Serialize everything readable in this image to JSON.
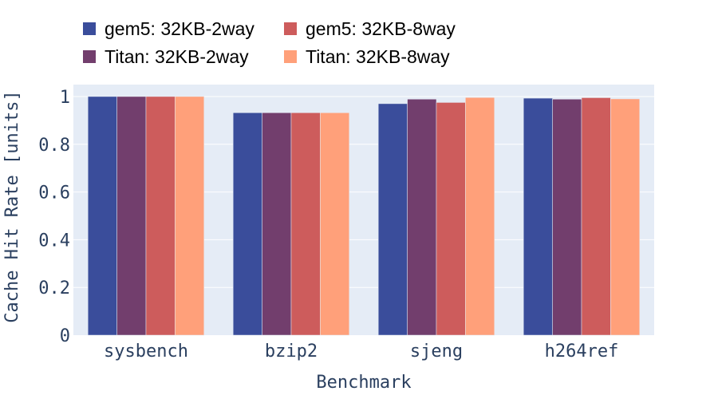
{
  "chart_data": {
    "type": "bar",
    "title": "",
    "xlabel": "Benchmark",
    "ylabel": "Cache Hit Rate [units]",
    "categories": [
      "sysbench",
      "bzip2",
      "sjeng",
      "h264ref"
    ],
    "series": [
      {
        "name": "gem5: 32KB-2way",
        "color": "#3a4d9b",
        "values": [
          1.0,
          0.932,
          0.97,
          0.993
        ]
      },
      {
        "name": "Titan: 32KB-2way",
        "color": "#723e6d",
        "values": [
          1.0,
          0.932,
          0.989,
          0.989
        ]
      },
      {
        "name": "gem5: 32KB-8way",
        "color": "#cd5c5c",
        "values": [
          1.0,
          0.932,
          0.975,
          0.995
        ]
      },
      {
        "name": "Titan: 32KB-8way",
        "color": "#ffa07a",
        "values": [
          1.0,
          0.932,
          0.996,
          0.99
        ]
      }
    ],
    "ylim": [
      0,
      1.05
    ],
    "yticks": [
      0,
      0.2,
      0.4,
      0.6,
      0.8,
      1
    ],
    "ytick_labels": [
      "0",
      "0.2",
      "0.4",
      "0.6",
      "0.8",
      "1"
    ],
    "grid": true,
    "legend_position": "top-left",
    "plot_background": "#e5ecf6",
    "text_color": "#2a3f5f"
  }
}
